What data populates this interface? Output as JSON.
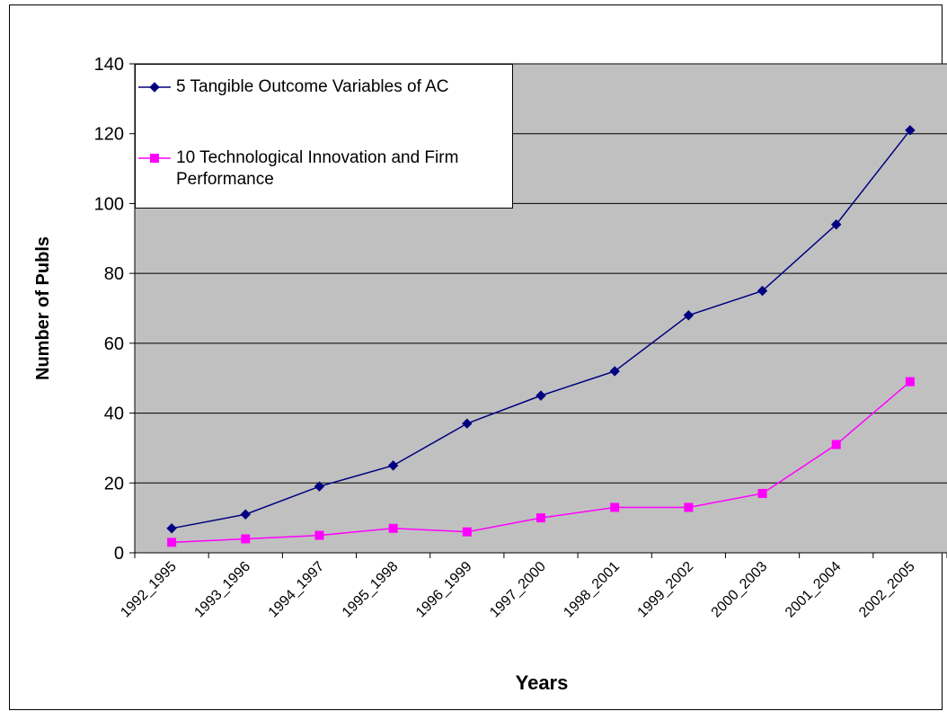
{
  "chart_data": {
    "type": "line",
    "categories": [
      "1992_1995",
      "1993_1996",
      "1994_1997",
      "1995_1998",
      "1996_1999",
      "1997_2000",
      "1998_2001",
      "1999_2002",
      "2000_2003",
      "2001_2004",
      "2002_2005"
    ],
    "series": [
      {
        "name": "5  Tangible Outcome Variables of AC",
        "color": "#000080",
        "marker": "diamond",
        "values": [
          7,
          11,
          19,
          25,
          37,
          45,
          52,
          68,
          75,
          94,
          121
        ]
      },
      {
        "name": "10  Technological Innovation and Firm Performance",
        "color": "#ff00ff",
        "marker": "square",
        "values": [
          3,
          4,
          5,
          7,
          6,
          10,
          13,
          13,
          17,
          31,
          49
        ]
      }
    ],
    "xlabel": "Years",
    "ylabel": "Number of Publs",
    "ylim": [
      0,
      140
    ],
    "yticks": [
      0,
      20,
      40,
      60,
      80,
      100,
      120,
      140
    ],
    "grid": true,
    "legend": "upper left",
    "plot_background": "#c0c0c0"
  }
}
